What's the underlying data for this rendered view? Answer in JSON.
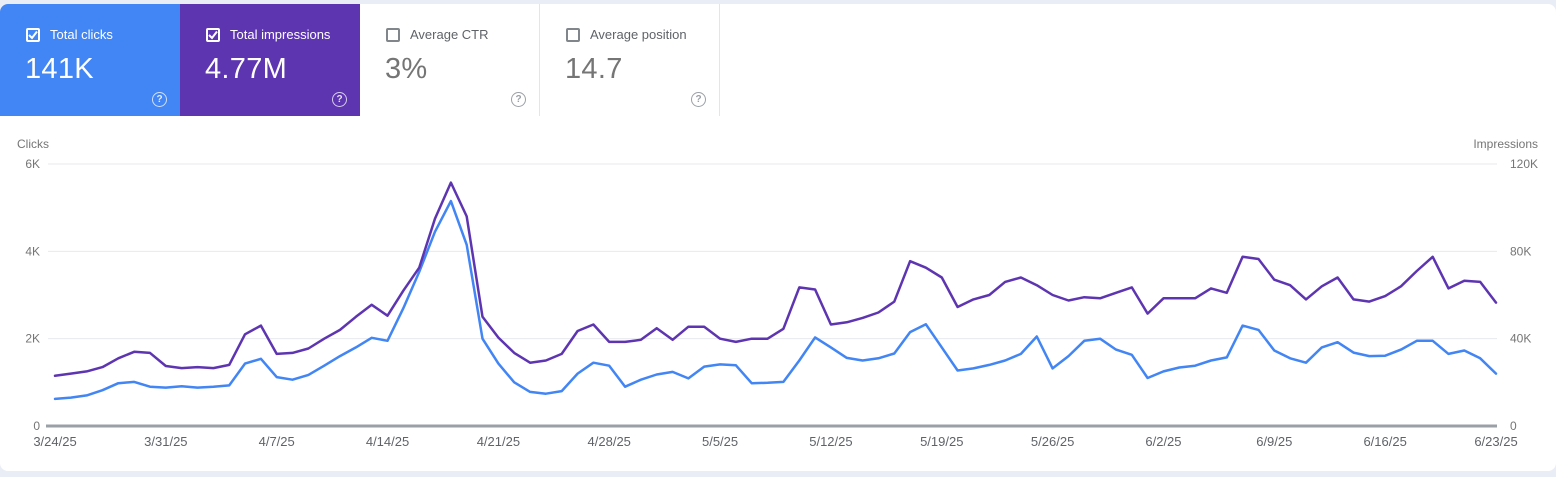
{
  "metric_cards": [
    {
      "id": "total-clicks",
      "label": "Total clicks",
      "value": "141K",
      "checked": true,
      "bg": "#4285f4"
    },
    {
      "id": "total-impressions",
      "label": "Total impressions",
      "value": "4.77M",
      "checked": true,
      "bg": "#5e35b1"
    },
    {
      "id": "average-ctr",
      "label": "Average CTR",
      "value": "3%",
      "checked": false,
      "bg": "#ffffff"
    },
    {
      "id": "average-position",
      "label": "Average position",
      "value": "14.7",
      "checked": false,
      "bg": "#ffffff"
    }
  ],
  "icons": {
    "help": "help-icon",
    "checkbox_checked": "checkbox-checked-icon",
    "checkbox_unchecked": "checkbox-unchecked-icon"
  },
  "colors": {
    "clicks_accent": "#4285f4",
    "impressions_accent": "#5e35b1",
    "gridline": "#e8eaed",
    "baseline": "#9aa0a6",
    "axis_text": "#757575",
    "date_text": "#5f6368",
    "page_background": "#e9edf6"
  },
  "chart_data": {
    "type": "line",
    "frequency": "daily",
    "start_date": "3/24/25",
    "end_date": "6/23/25",
    "num_points": 92,
    "grid": true,
    "legend_position": "none",
    "left_axis": {
      "title": "Clicks",
      "tick_labels": [
        "6K",
        "4K",
        "2K",
        "0"
      ],
      "min": 0,
      "max": 6000
    },
    "right_axis": {
      "title": "Impressions",
      "tick_labels": [
        "120K",
        "80K",
        "40K",
        "0"
      ],
      "min": 0,
      "max": 120000
    },
    "x_tick_labels": [
      "3/24/25",
      "3/31/25",
      "4/7/25",
      "4/14/25",
      "4/21/25",
      "4/28/25",
      "5/5/25",
      "5/12/25",
      "5/19/25",
      "5/26/25",
      "6/2/25",
      "6/9/25",
      "6/16/25",
      "6/23/25"
    ],
    "series": [
      {
        "name": "Clicks",
        "axis": "left",
        "color": "#4285f4",
        "values": [
          620,
          650,
          700,
          820,
          980,
          1010,
          900,
          880,
          910,
          880,
          900,
          930,
          1430,
          1540,
          1120,
          1060,
          1170,
          1380,
          1600,
          1800,
          2020,
          1950,
          2700,
          3530,
          4450,
          5150,
          4150,
          2000,
          1430,
          1000,
          780,
          740,
          800,
          1200,
          1450,
          1380,
          900,
          1060,
          1180,
          1240,
          1090,
          1360,
          1410,
          1390,
          980,
          990,
          1010,
          1500,
          2030,
          1800,
          1560,
          1500,
          1550,
          1660,
          2150,
          2330,
          1800,
          1270,
          1320,
          1400,
          1500,
          1650,
          2050,
          1320,
          1600,
          1950,
          2000,
          1750,
          1630,
          1100,
          1250,
          1340,
          1380,
          1500,
          1570,
          2300,
          2200,
          1730,
          1550,
          1450,
          1800,
          1920,
          1680,
          1600,
          1610,
          1750,
          1950,
          1950,
          1650,
          1730,
          1550,
          1200
        ]
      },
      {
        "name": "Impressions",
        "axis": "right",
        "color": "#5e35b1",
        "values": [
          23000,
          24000,
          25000,
          27000,
          31000,
          34000,
          33500,
          27500,
          26500,
          27000,
          26500,
          28000,
          42000,
          46000,
          33000,
          33500,
          35500,
          40000,
          44000,
          50000,
          55500,
          50500,
          62000,
          72500,
          95000,
          111500,
          96000,
          50000,
          40500,
          33500,
          29000,
          30000,
          33000,
          43500,
          46500,
          38500,
          38500,
          39500,
          44800,
          39500,
          45500,
          45500,
          40000,
          38500,
          40000,
          40000,
          44500,
          63500,
          62500,
          46500,
          47500,
          49500,
          52000,
          57000,
          75500,
          72500,
          68000,
          54500,
          58000,
          60000,
          66000,
          68000,
          64500,
          60000,
          57500,
          59000,
          58500,
          61000,
          63500,
          51500,
          58500,
          58500,
          58500,
          63000,
          61000,
          77500,
          76500,
          67000,
          64500,
          58000,
          64000,
          68000,
          58000,
          57000,
          59500,
          64000,
          71000,
          77500,
          63000,
          66500,
          66000,
          56500
        ]
      }
    ]
  }
}
